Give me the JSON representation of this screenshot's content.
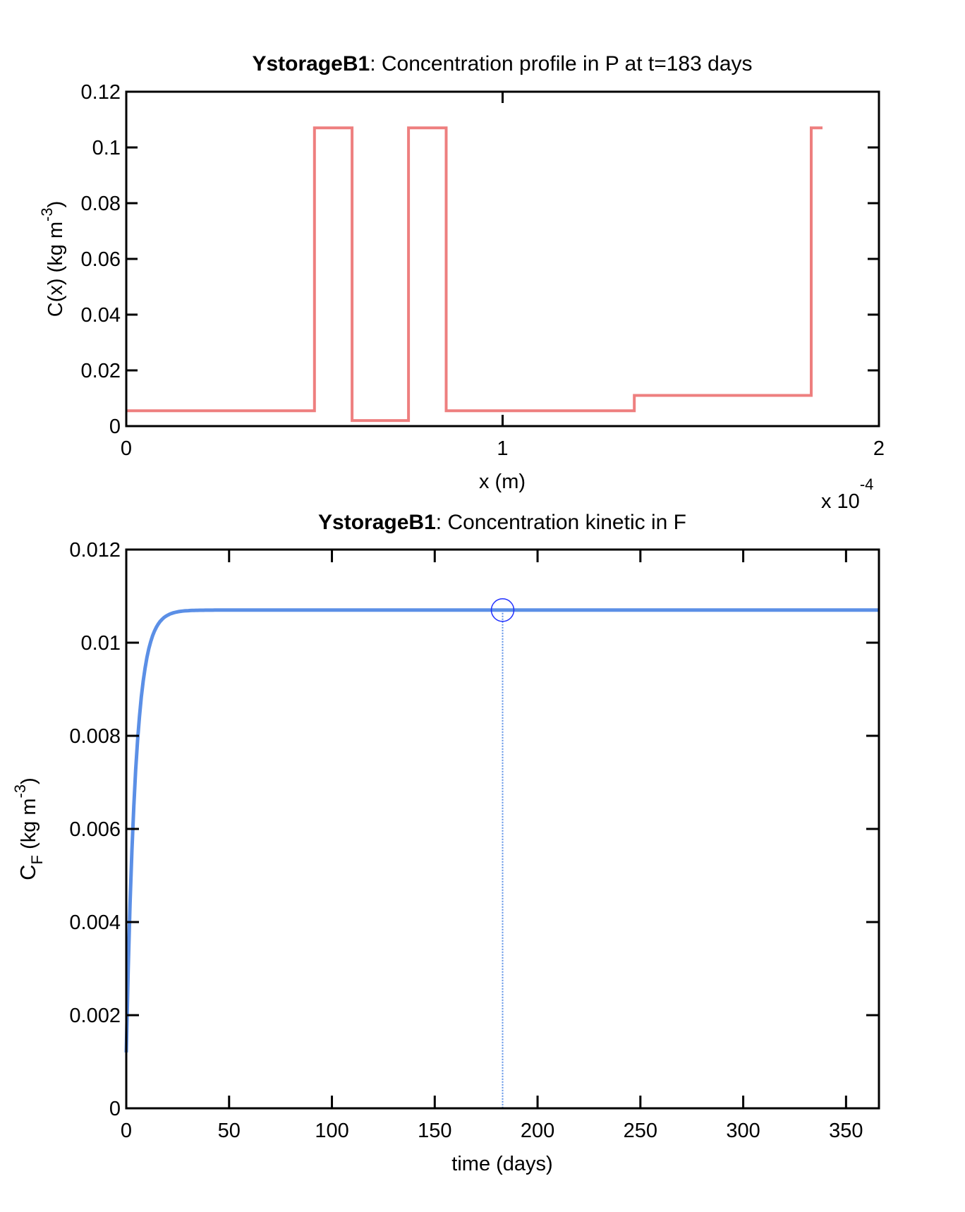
{
  "chart_data": [
    {
      "type": "line",
      "title_bold": "YstorageB1",
      "title_rest": ": Concentration profile in P at t=183 days",
      "xlabel": "x (m)",
      "ylabel_main": "C(x) (kg m",
      "ylabel_sup": "-3",
      "ylabel_close": ")",
      "x_multiplier_base": "x 10",
      "x_multiplier_exp": "-4",
      "xlim": [
        0,
        2
      ],
      "ylim": [
        0,
        0.12
      ],
      "xticks": [
        0,
        1,
        2
      ],
      "xtick_labels": [
        "0",
        "1",
        "2"
      ],
      "yticks": [
        0,
        0.02,
        0.04,
        0.06,
        0.08,
        0.1,
        0.12
      ],
      "ytick_labels": [
        "0",
        "0.02",
        "0.04",
        "0.06",
        "0.08",
        "0.1",
        "0.12"
      ],
      "grid": false,
      "series": [
        {
          "color": "#ee7f7f",
          "points": [
            [
              0,
              0.0055
            ],
            [
              0.5,
              0.0055
            ],
            [
              0.5,
              0.107
            ],
            [
              0.6,
              0.107
            ],
            [
              0.6,
              0.002
            ],
            [
              0.75,
              0.002
            ],
            [
              0.75,
              0.107
            ],
            [
              0.85,
              0.107
            ],
            [
              0.85,
              0.0055
            ],
            [
              1.35,
              0.0055
            ],
            [
              1.35,
              0.011
            ],
            [
              1.82,
              0.011
            ],
            [
              1.82,
              0.107
            ],
            [
              1.85,
              0.107
            ]
          ]
        }
      ]
    },
    {
      "type": "line",
      "title_bold": "YstorageB1",
      "title_rest": ": Concentration kinetic in F",
      "xlabel": "time (days)",
      "ylabel_main": "C",
      "ylabel_sub": "F",
      "ylabel_units": " (kg m",
      "ylabel_sup": "-3",
      "ylabel_close": ")",
      "xlim": [
        0,
        366
      ],
      "ylim": [
        0,
        0.012
      ],
      "xticks": [
        0,
        50,
        100,
        150,
        200,
        250,
        300,
        350
      ],
      "xtick_labels": [
        "0",
        "50",
        "100",
        "150",
        "200",
        "250",
        "300",
        "350"
      ],
      "yticks": [
        0,
        0.002,
        0.004,
        0.006,
        0.008,
        0.01,
        0.012
      ],
      "ytick_labels": [
        "0",
        "0.002",
        "0.004",
        "0.006",
        "0.008",
        "0.01",
        "0.012"
      ],
      "grid": false,
      "series": [
        {
          "color": "#5b8fe6",
          "curve": "saturating",
          "x_start": 0,
          "x_end": 366,
          "y_start": 0.0012,
          "y_plateau": 0.0107,
          "time_constant_days": 4.5
        }
      ],
      "marker": {
        "x": 183,
        "y": 0.0107,
        "color": "#1f2fff",
        "line_color": "#5b8fe6"
      }
    }
  ]
}
